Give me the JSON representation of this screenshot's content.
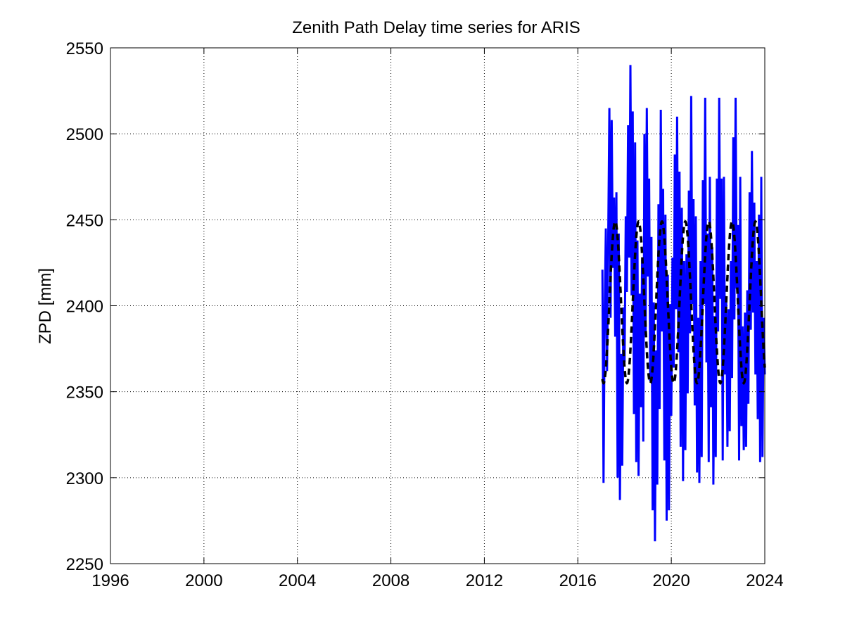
{
  "chart_data": {
    "type": "line",
    "title": "Zenith Path Delay time series for ARIS",
    "xlabel": "",
    "ylabel": "ZPD [mm]",
    "xlim": [
      1996,
      2024
    ],
    "ylim": [
      2250,
      2550
    ],
    "xticks": [
      "1996",
      "2000",
      "2004",
      "2008",
      "2012",
      "2016",
      "2020",
      "2024"
    ],
    "yticks": [
      "2250",
      "2300",
      "2350",
      "2400",
      "2450",
      "2500",
      "2550"
    ],
    "grid": true,
    "legend": "none",
    "series": [
      {
        "style": "solid",
        "color": "#0000ff",
        "x": [
          2017.05,
          2017.1,
          2017.15,
          2017.2,
          2017.25,
          2017.3,
          2017.35,
          2017.4,
          2017.45,
          2017.5,
          2017.55,
          2017.6,
          2017.65,
          2017.7,
          2017.75,
          2017.8,
          2017.85,
          2017.9,
          2017.95,
          2018.0,
          2018.05,
          2018.1,
          2018.15,
          2018.2,
          2018.25,
          2018.3,
          2018.35,
          2018.4,
          2018.45,
          2018.5,
          2018.55,
          2018.6,
          2018.65,
          2018.7,
          2018.75,
          2018.8,
          2018.85,
          2018.9,
          2018.95,
          2019.0,
          2019.05,
          2019.1,
          2019.15,
          2019.2,
          2019.25,
          2019.3,
          2019.35,
          2019.4,
          2019.45,
          2019.5,
          2019.55,
          2019.6,
          2019.65,
          2019.7,
          2019.75,
          2019.8,
          2019.85,
          2019.9,
          2019.95,
          2020.0,
          2020.05,
          2020.1,
          2020.15,
          2020.2,
          2020.25,
          2020.3,
          2020.35,
          2020.4,
          2020.45,
          2020.5,
          2020.55,
          2020.6,
          2020.65,
          2020.7,
          2020.75,
          2020.8,
          2020.85,
          2020.9,
          2020.95,
          2021.0,
          2021.05,
          2021.1,
          2021.15,
          2021.2,
          2021.25,
          2021.3,
          2021.35,
          2021.4,
          2021.45,
          2021.5,
          2021.55,
          2021.6,
          2021.65,
          2021.7,
          2021.75,
          2021.8,
          2021.85,
          2021.9,
          2021.95,
          2022.0,
          2022.05,
          2022.1,
          2022.15,
          2022.2,
          2022.25,
          2022.3,
          2022.35,
          2022.4,
          2022.45,
          2022.5,
          2022.55,
          2022.6,
          2022.65,
          2022.7,
          2022.75,
          2022.8,
          2022.85,
          2022.9,
          2022.95,
          2023.0,
          2023.05,
          2023.1,
          2023.15,
          2023.2,
          2023.25,
          2023.3,
          2023.35,
          2023.4,
          2023.45,
          2023.5,
          2023.55,
          2023.6,
          2023.65,
          2023.7,
          2023.75,
          2023.8,
          2023.85,
          2023.9,
          2023.95,
          2024.0
        ],
        "y": [
          2421,
          2297,
          2398,
          2445,
          2362,
          2441,
          2515,
          2393,
          2508,
          2422,
          2463,
          2382,
          2466,
          2300,
          2442,
          2287,
          2372,
          2307,
          2399,
          2367,
          2452,
          2408,
          2505,
          2428,
          2540,
          2406,
          2513,
          2337,
          2495,
          2309,
          2438,
          2301,
          2407,
          2341,
          2427,
          2321,
          2500,
          2383,
          2515,
          2417,
          2474,
          2356,
          2440,
          2281,
          2402,
          2263,
          2374,
          2296,
          2459,
          2340,
          2514,
          2385,
          2468,
          2310,
          2453,
          2275,
          2418,
          2281,
          2401,
          2336,
          2428,
          2364,
          2488,
          2398,
          2510,
          2373,
          2478,
          2318,
          2457,
          2298,
          2426,
          2316,
          2430,
          2349,
          2467,
          2384,
          2522,
          2401,
          2462,
          2342,
          2452,
          2303,
          2393,
          2297,
          2426,
          2312,
          2473,
          2401,
          2521,
          2367,
          2442,
          2309,
          2475,
          2341,
          2434,
          2296,
          2394,
          2312,
          2474,
          2385,
          2521,
          2404,
          2474,
          2310,
          2475,
          2360,
          2402,
          2318,
          2398,
          2327,
          2426,
          2358,
          2498,
          2392,
          2521,
          2410,
          2447,
          2310,
          2475,
          2330,
          2388,
          2316,
          2396,
          2318,
          2409,
          2343,
          2466,
          2386,
          2490,
          2396,
          2460,
          2360,
          2426,
          2334,
          2453,
          2309,
          2475,
          2312,
          2393,
          2360
        ]
      },
      {
        "style": "dashed",
        "color": "#000000",
        "model": "sinusoid",
        "period_years": 1,
        "mean": 2402,
        "amplitude": 47,
        "peak_phase": 0.6,
        "x_range": [
          2017.05,
          2024.0
        ]
      }
    ]
  }
}
